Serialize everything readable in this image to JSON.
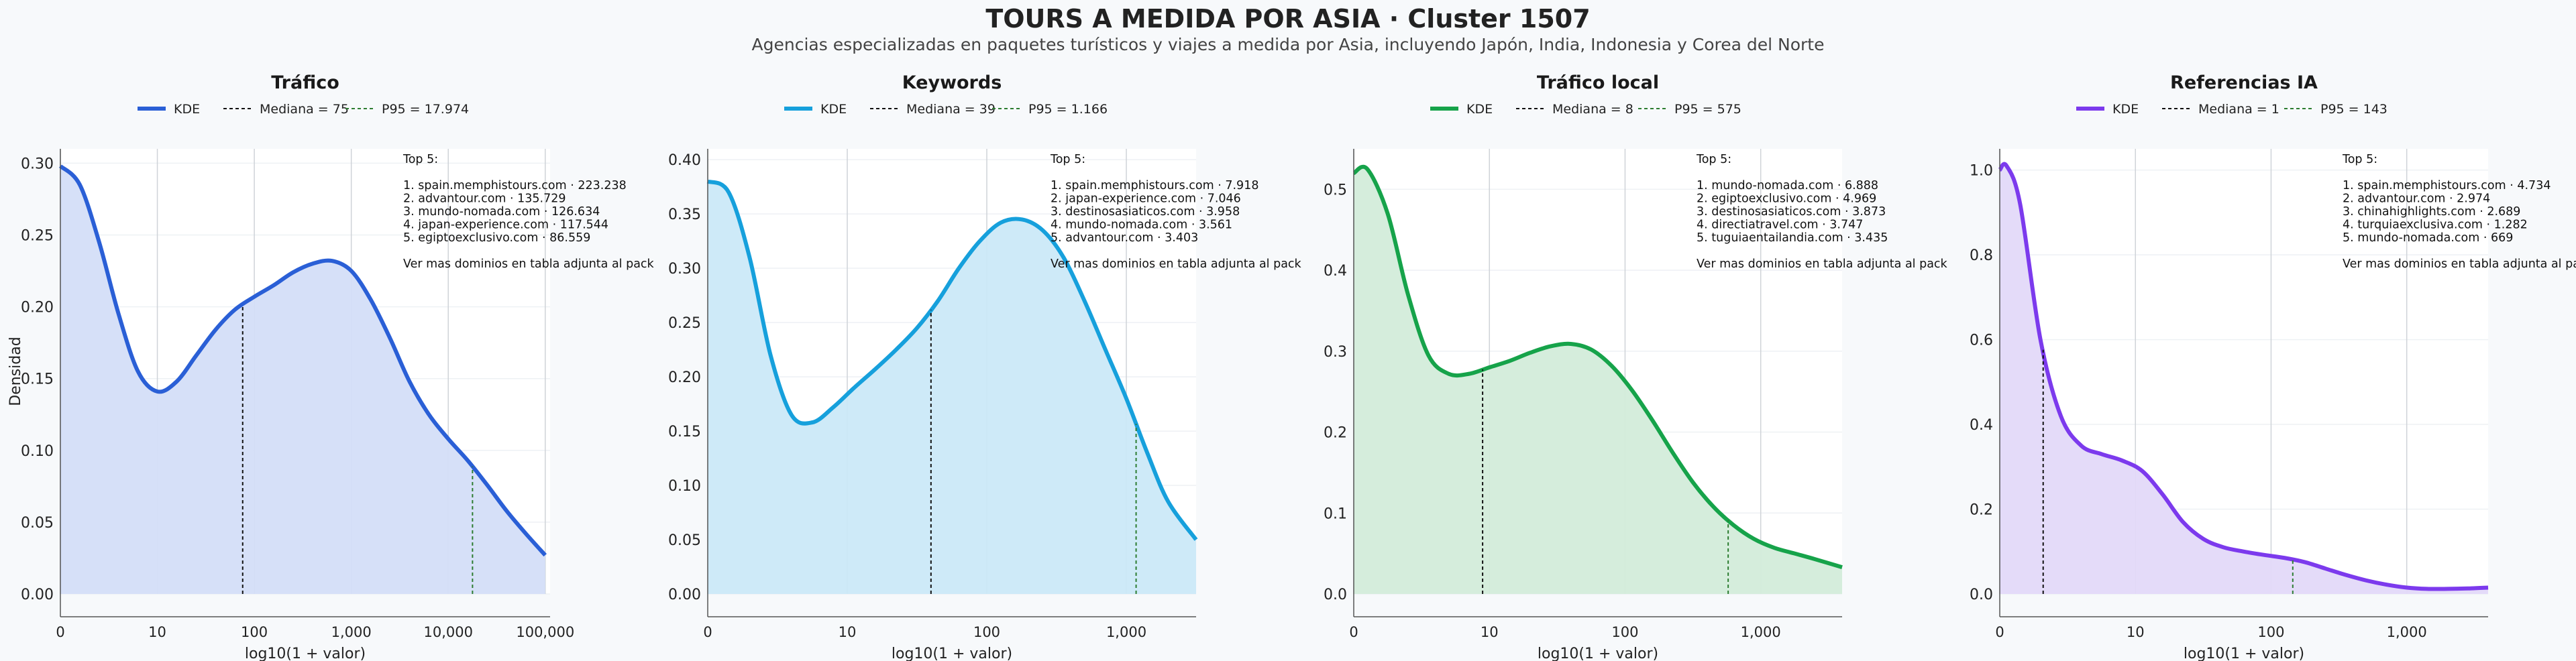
{
  "title": "TOURS A MEDIDA POR ASIA · Cluster 1507",
  "subtitle": "Agencias especializadas en paquetes turísticos y viajes a medida por Asia, incluyendo Japón, India, Indonesia y Corea del Norte",
  "chart_data": [
    {
      "type": "area",
      "title": "Tráfico",
      "xlabel": "log10(1 + valor)",
      "ylabel": "Densidad",
      "color": "#2a5fd6",
      "fill": "#d4def8",
      "xlim": [
        0,
        5.05
      ],
      "ylim": [
        0,
        0.31
      ],
      "yticks": [
        0.0,
        0.05,
        0.1,
        0.15,
        0.2,
        0.25,
        0.3
      ],
      "ytick_labels": [
        "0.00",
        "0.05",
        "0.10",
        "0.15",
        "0.20",
        "0.25",
        "0.30"
      ],
      "xticks": [
        0,
        1,
        2,
        3,
        4,
        5
      ],
      "xtick_labels": [
        "0",
        "10",
        "100",
        "1,000",
        "10,000",
        "100,000"
      ],
      "legend": [
        "KDE",
        "Mediana = 75",
        "P95 = 17.974"
      ],
      "median_x": 1.88,
      "p95_x": 4.25,
      "x": [
        0,
        0.2,
        0.4,
        0.6,
        0.8,
        1.0,
        1.2,
        1.4,
        1.6,
        1.8,
        2.0,
        2.2,
        2.4,
        2.6,
        2.8,
        3.0,
        3.2,
        3.4,
        3.6,
        3.8,
        4.0,
        4.2,
        4.4,
        4.6,
        4.8,
        5.0
      ],
      "y": [
        0.298,
        0.285,
        0.245,
        0.195,
        0.155,
        0.141,
        0.148,
        0.166,
        0.184,
        0.198,
        0.207,
        0.215,
        0.224,
        0.23,
        0.232,
        0.225,
        0.205,
        0.178,
        0.148,
        0.125,
        0.108,
        0.093,
        0.076,
        0.058,
        0.042,
        0.027
      ],
      "annotation": [
        "Top 5:",
        "",
        "1. spain.memphistours.com · 223.238",
        "2. advantour.com · 135.729",
        "3. mundo-nomada.com · 126.634",
        "4. japan-experience.com · 117.544",
        "5. egiptoexclusivo.com · 86.559",
        "",
        "Ver mas dominios en tabla adjunta al pack"
      ]
    },
    {
      "type": "area",
      "title": "Keywords",
      "xlabel": "log10(1 + valor)",
      "ylabel": "",
      "color": "#16a0dc",
      "fill": "#cbe9f8",
      "xlim": [
        0,
        3.5
      ],
      "ylim": [
        0,
        0.41
      ],
      "yticks": [
        0.0,
        0.05,
        0.1,
        0.15,
        0.2,
        0.25,
        0.3,
        0.35,
        0.4
      ],
      "ytick_labels": [
        "0.00",
        "0.05",
        "0.10",
        "0.15",
        "0.20",
        "0.25",
        "0.30",
        "0.35",
        "0.40"
      ],
      "xticks": [
        0,
        1,
        2,
        3
      ],
      "xtick_labels": [
        "0",
        "10",
        "100",
        "1,000"
      ],
      "legend": [
        "KDE",
        "Mediana = 39",
        "P95 = 1.166"
      ],
      "median_x": 1.6,
      "p95_x": 3.07,
      "x": [
        0,
        0.15,
        0.3,
        0.45,
        0.6,
        0.75,
        0.9,
        1.05,
        1.2,
        1.35,
        1.5,
        1.65,
        1.8,
        1.95,
        2.1,
        2.25,
        2.4,
        2.55,
        2.7,
        2.85,
        3.0,
        3.15,
        3.3,
        3.5
      ],
      "y": [
        0.38,
        0.37,
        0.31,
        0.22,
        0.165,
        0.158,
        0.172,
        0.19,
        0.207,
        0.225,
        0.245,
        0.27,
        0.3,
        0.325,
        0.342,
        0.345,
        0.335,
        0.31,
        0.27,
        0.225,
        0.18,
        0.13,
        0.085,
        0.05
      ],
      "annotation": [
        "Top 5:",
        "",
        "1. spain.memphistours.com · 7.918",
        "2. japan-experience.com · 7.046",
        "3. destinosasiaticos.com · 3.958",
        "4. mundo-nomada.com · 3.561",
        "5. advantour.com · 3.403",
        "",
        "Ver mas dominios en tabla adjunta al pack"
      ]
    },
    {
      "type": "area",
      "title": "Tráfico local",
      "xlabel": "log10(1 + valor)",
      "ylabel": "",
      "color": "#16a34a",
      "fill": "#d3ecda",
      "xlim": [
        0,
        3.6
      ],
      "ylim": [
        0,
        0.55
      ],
      "yticks": [
        0.0,
        0.1,
        0.2,
        0.3,
        0.4,
        0.5
      ],
      "ytick_labels": [
        "0.0",
        "0.1",
        "0.2",
        "0.3",
        "0.4",
        "0.5"
      ],
      "xticks": [
        0,
        1,
        2,
        3
      ],
      "xtick_labels": [
        "0",
        "10",
        "100",
        "1,000"
      ],
      "legend": [
        "KDE",
        "Mediana = 8",
        "P95 = 575"
      ],
      "median_x": 0.95,
      "p95_x": 2.76,
      "x": [
        0,
        0.1,
        0.25,
        0.4,
        0.55,
        0.7,
        0.85,
        1.0,
        1.15,
        1.3,
        1.45,
        1.6,
        1.75,
        1.9,
        2.05,
        2.2,
        2.35,
        2.5,
        2.65,
        2.8,
        2.95,
        3.1,
        3.25,
        3.4,
        3.6
      ],
      "y": [
        0.52,
        0.525,
        0.47,
        0.37,
        0.295,
        0.272,
        0.272,
        0.28,
        0.288,
        0.298,
        0.306,
        0.309,
        0.302,
        0.282,
        0.252,
        0.215,
        0.175,
        0.138,
        0.108,
        0.085,
        0.068,
        0.057,
        0.05,
        0.043,
        0.033
      ],
      "annotation": [
        "Top 5:",
        "",
        "1. mundo-nomada.com · 6.888",
        "2. egiptoexclusivo.com · 4.969",
        "3. destinosasiaticos.com · 3.873",
        "4. directiatravel.com · 3.747",
        "5. tuguiaentailandia.com · 3.435",
        "",
        "Ver mas dominios en tabla adjunta al pack"
      ]
    },
    {
      "type": "area",
      "title": "Referencias IA",
      "xlabel": "log10(1 + valor)",
      "ylabel": "",
      "color": "#7c3aed",
      "fill": "#e3d9f9",
      "xlim": [
        0,
        3.6
      ],
      "ylim": [
        0,
        1.05
      ],
      "yticks": [
        0.0,
        0.2,
        0.4,
        0.6,
        0.8,
        1.0
      ],
      "ytick_labels": [
        "0.0",
        "0.2",
        "0.4",
        "0.6",
        "0.8",
        "1.0"
      ],
      "xticks": [
        0,
        1,
        2,
        3
      ],
      "xtick_labels": [
        "0",
        "10",
        "100",
        "1,000"
      ],
      "legend": [
        "KDE",
        "Mediana = 1",
        "P95 = 143"
      ],
      "median_x": 0.32,
      "p95_x": 2.16,
      "x": [
        0,
        0.05,
        0.15,
        0.3,
        0.45,
        0.6,
        0.75,
        0.9,
        1.05,
        1.2,
        1.35,
        1.5,
        1.65,
        1.8,
        1.95,
        2.1,
        2.25,
        2.4,
        2.55,
        2.7,
        2.85,
        3.0,
        3.15,
        3.3,
        3.45,
        3.6
      ],
      "y": [
        1.0,
        1.01,
        0.92,
        0.6,
        0.42,
        0.35,
        0.33,
        0.315,
        0.29,
        0.235,
        0.17,
        0.13,
        0.11,
        0.1,
        0.092,
        0.085,
        0.075,
        0.06,
        0.045,
        0.032,
        0.022,
        0.015,
        0.012,
        0.012,
        0.013,
        0.015
      ],
      "annotation": [
        "Top 5:",
        "",
        "1. spain.memphistours.com · 4.734",
        "2. advantour.com · 2.974",
        "3. chinahighlights.com · 2.689",
        "4. turquiaexclusiva.com · 1.282",
        "5. mundo-nomada.com · 669",
        "",
        "Ver mas dominios en tabla adjunta al pack"
      ]
    }
  ]
}
